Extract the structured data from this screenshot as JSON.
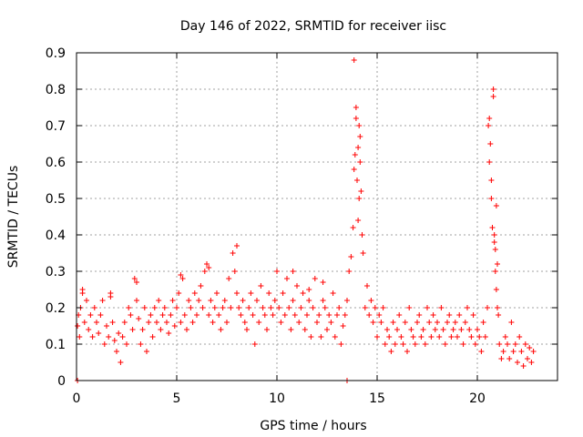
{
  "chart_data": {
    "type": "scatter",
    "title": "Day 146 of 2022, SRMTID for receiver iisc",
    "xlabel": "GPS time / hours",
    "ylabel": "SRMTID / TECUs",
    "xlim": [
      0,
      24
    ],
    "ylim": [
      0,
      0.9
    ],
    "xticks": [
      0,
      5,
      10,
      15,
      20
    ],
    "xtick_labels": [
      "0",
      "5",
      "10",
      "15",
      "20"
    ],
    "yticks": [
      0,
      0.1,
      0.2,
      0.3,
      0.4,
      0.5,
      0.6,
      0.7,
      0.8,
      0.9
    ],
    "ytick_labels": [
      "0",
      "0.1",
      "0.2",
      "0.3",
      "0.4",
      "0.5",
      "0.6",
      "0.7",
      "0.8",
      "0.9"
    ],
    "grid": true,
    "marker": "plus",
    "color": "#ff0000",
    "series": [
      {
        "name": "SRMTID",
        "x": [
          0.05,
          0.1,
          0.15,
          0.2,
          0.3,
          0.4,
          0.5,
          0.6,
          0.7,
          0.8,
          0.9,
          1.0,
          1.1,
          1.2,
          1.3,
          1.4,
          1.5,
          1.6,
          1.7,
          1.8,
          1.9,
          2.0,
          2.1,
          2.2,
          2.3,
          2.4,
          2.5,
          2.6,
          2.7,
          2.8,
          2.9,
          3.0,
          3.1,
          3.2,
          3.3,
          3.4,
          3.5,
          3.6,
          3.7,
          3.8,
          3.9,
          4.0,
          4.1,
          4.2,
          4.3,
          4.4,
          4.5,
          4.6,
          4.7,
          4.8,
          4.9,
          5.0,
          5.1,
          5.2,
          5.3,
          5.4,
          5.5,
          5.6,
          5.7,
          5.8,
          5.9,
          6.0,
          6.1,
          6.2,
          6.3,
          6.4,
          6.5,
          6.6,
          6.7,
          6.8,
          6.9,
          7.0,
          7.1,
          7.2,
          7.3,
          7.4,
          7.5,
          7.6,
          7.7,
          7.8,
          7.9,
          8.0,
          8.1,
          8.2,
          8.3,
          8.4,
          8.5,
          8.6,
          8.7,
          8.8,
          8.9,
          9.0,
          9.1,
          9.2,
          9.3,
          9.4,
          9.5,
          9.6,
          9.7,
          9.8,
          9.9,
          10.0,
          10.1,
          10.2,
          10.3,
          10.4,
          10.5,
          10.6,
          10.7,
          10.8,
          10.9,
          11.0,
          11.1,
          11.2,
          11.3,
          11.4,
          11.5,
          11.6,
          11.7,
          11.8,
          11.9,
          12.0,
          12.1,
          12.2,
          12.3,
          12.4,
          12.5,
          12.6,
          12.7,
          12.8,
          12.9,
          13.0,
          13.1,
          13.2,
          13.3,
          13.4,
          13.5,
          13.6,
          13.7,
          13.8,
          13.85,
          13.9,
          13.95,
          14.0,
          14.05,
          14.1,
          14.15,
          14.2,
          14.25,
          14.3,
          14.4,
          14.5,
          14.6,
          14.7,
          14.8,
          14.9,
          15.0,
          15.1,
          15.2,
          15.3,
          15.4,
          15.5,
          15.6,
          15.7,
          15.8,
          15.9,
          16.0,
          16.1,
          16.2,
          16.3,
          16.4,
          16.5,
          16.6,
          16.7,
          16.8,
          16.9,
          17.0,
          17.1,
          17.2,
          17.3,
          17.4,
          17.5,
          17.6,
          17.7,
          17.8,
          17.9,
          18.0,
          18.1,
          18.2,
          18.3,
          18.4,
          18.5,
          18.6,
          18.7,
          18.8,
          18.9,
          19.0,
          19.1,
          19.2,
          19.3,
          19.4,
          19.5,
          19.6,
          19.7,
          19.8,
          19.9,
          20.0,
          20.1,
          20.2,
          20.3,
          20.4,
          20.5,
          20.55,
          20.6,
          20.65,
          20.7,
          20.75,
          20.8,
          20.85,
          20.9,
          20.95,
          21.0,
          21.05,
          21.1,
          21.2,
          21.3,
          21.4,
          21.5,
          21.6,
          21.7,
          21.8,
          21.9,
          22.0,
          22.1,
          22.2,
          22.3,
          22.4,
          22.5,
          22.6,
          22.7,
          22.8,
          0.05,
          13.5,
          13.85,
          13.95,
          14.05,
          14.1,
          14.15,
          20.6,
          20.7,
          20.8,
          20.85,
          20.9,
          20.95,
          21.0,
          8.0,
          6.6,
          5.2,
          3.0,
          10.8,
          12.3,
          11.6,
          0.3,
          1.7
        ],
        "y": [
          0.15,
          0.18,
          0.12,
          0.2,
          0.25,
          0.16,
          0.22,
          0.14,
          0.18,
          0.12,
          0.2,
          0.16,
          0.13,
          0.18,
          0.22,
          0.1,
          0.15,
          0.12,
          0.24,
          0.16,
          0.11,
          0.08,
          0.13,
          0.05,
          0.12,
          0.16,
          0.1,
          0.2,
          0.18,
          0.14,
          0.28,
          0.22,
          0.17,
          0.1,
          0.14,
          0.2,
          0.08,
          0.16,
          0.18,
          0.12,
          0.2,
          0.16,
          0.22,
          0.14,
          0.18,
          0.2,
          0.16,
          0.13,
          0.18,
          0.22,
          0.15,
          0.2,
          0.24,
          0.16,
          0.28,
          0.18,
          0.14,
          0.22,
          0.2,
          0.16,
          0.24,
          0.18,
          0.22,
          0.26,
          0.2,
          0.3,
          0.32,
          0.18,
          0.22,
          0.16,
          0.2,
          0.24,
          0.18,
          0.14,
          0.2,
          0.22,
          0.16,
          0.28,
          0.2,
          0.35,
          0.3,
          0.24,
          0.2,
          0.18,
          0.22,
          0.16,
          0.14,
          0.2,
          0.24,
          0.18,
          0.1,
          0.22,
          0.16,
          0.26,
          0.2,
          0.18,
          0.14,
          0.24,
          0.2,
          0.18,
          0.22,
          0.3,
          0.2,
          0.16,
          0.24,
          0.18,
          0.28,
          0.2,
          0.14,
          0.22,
          0.18,
          0.26,
          0.16,
          0.2,
          0.24,
          0.14,
          0.18,
          0.22,
          0.12,
          0.2,
          0.28,
          0.16,
          0.18,
          0.12,
          0.22,
          0.2,
          0.14,
          0.18,
          0.16,
          0.24,
          0.12,
          0.18,
          0.2,
          0.1,
          0.15,
          0.18,
          0.22,
          0.3,
          0.34,
          0.42,
          0.88,
          0.62,
          0.75,
          0.55,
          0.44,
          0.7,
          0.67,
          0.52,
          0.4,
          0.35,
          0.2,
          0.26,
          0.18,
          0.22,
          0.16,
          0.2,
          0.12,
          0.18,
          0.16,
          0.2,
          0.1,
          0.14,
          0.12,
          0.08,
          0.16,
          0.1,
          0.14,
          0.18,
          0.12,
          0.1,
          0.16,
          0.08,
          0.2,
          0.14,
          0.12,
          0.1,
          0.16,
          0.18,
          0.12,
          0.14,
          0.1,
          0.2,
          0.16,
          0.12,
          0.18,
          0.14,
          0.16,
          0.12,
          0.2,
          0.14,
          0.1,
          0.16,
          0.18,
          0.12,
          0.14,
          0.16,
          0.12,
          0.18,
          0.14,
          0.1,
          0.16,
          0.2,
          0.14,
          0.12,
          0.18,
          0.1,
          0.14,
          0.12,
          0.08,
          0.16,
          0.12,
          0.2,
          0.7,
          0.6,
          0.65,
          0.5,
          0.42,
          0.8,
          0.38,
          0.3,
          0.25,
          0.2,
          0.18,
          0.1,
          0.06,
          0.08,
          0.12,
          0.1,
          0.06,
          0.16,
          0.08,
          0.1,
          0.05,
          0.12,
          0.08,
          0.04,
          0.1,
          0.06,
          0.09,
          0.05,
          0.08,
          0.0,
          0.0,
          0.58,
          0.72,
          0.64,
          0.5,
          0.6,
          0.72,
          0.55,
          0.78,
          0.4,
          0.36,
          0.48,
          0.32,
          0.37,
          0.31,
          0.29,
          0.27,
          0.3,
          0.27,
          0.25,
          0.24,
          0.23
        ]
      }
    ]
  }
}
